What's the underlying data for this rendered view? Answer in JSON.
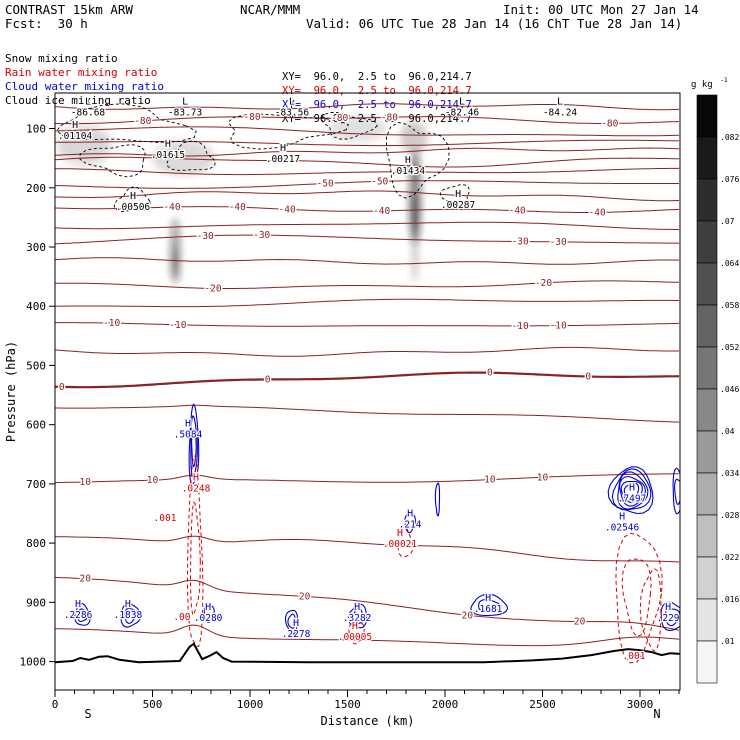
{
  "header": {
    "title": "CONTRAST 15km ARW",
    "center": "NCAR/MMM",
    "init": "Init: 00 UTC Mon 27 Jan 14",
    "fcst": "Fcst:  30 h",
    "valid": "Valid: 06 UTC Tue 28 Jan 14 (16 ChT Tue 28 Jan 14)"
  },
  "legend": [
    {
      "label": "Snow mixing ratio",
      "xy": "XY=  96.0,  2.5 to  96.0,214.7",
      "color": "#000000"
    },
    {
      "label": "Rain water mixing ratio",
      "xy": "XY=  96.0,  2.5 to  96.0,214.7",
      "color": "#d40000"
    },
    {
      "label": "Cloud water mixing ratio",
      "xy": "XY=  96.0,  2.5 to  96.0,214.7",
      "color": "#0000cc"
    },
    {
      "label": "Cloud ice mixing ratio",
      "xy": "XY=  96.0,  2.5 to  96.0,214.7",
      "color": "#000000"
    }
  ],
  "colors": {
    "temp": "#8b2222",
    "rain": "#d40000",
    "cloud": "#0000cc",
    "snow": "#000000"
  },
  "colorbar": {
    "unit": "g kg",
    "exp": "-1",
    "labels": [
      ".082",
      ".076",
      ".07",
      ".064",
      ".058",
      ".052",
      ".046",
      ".04",
      ".034",
      ".028",
      ".022",
      ".016",
      ".01"
    ]
  },
  "axes": {
    "y_label": "Pressure (hPa)",
    "y_ticks": [
      100,
      200,
      300,
      400,
      500,
      600,
      700,
      800,
      900,
      1000
    ],
    "x_label": "Distance (km)",
    "x_ticks": [
      0,
      500,
      1000,
      1500,
      2000,
      2500,
      3000
    ],
    "left_label": "S",
    "right_label": "N",
    "p_top": 40,
    "p_bottom": 1048,
    "km_max": 3205
  },
  "chart_data": {
    "type": "contour-cross-section",
    "description": "Vertical cross section: temperature contours (dark red, deg C), snow mixing ratio (black dashed), rain water mixing ratio (red dashed), cloud water mixing ratio (blue), cloud ice mixing ratio (gray shading, g/kg)",
    "temperature_contours": [
      {
        "v": -85,
        "p": 63
      },
      {
        "v": -80,
        "p": 85,
        "lab": [
          450,
          1010,
          1460,
          1715,
          2845
        ]
      },
      {
        "v": -75,
        "p": 106
      },
      {
        "v": -70,
        "p": 123
      },
      {
        "v": -65,
        "p": 140
      },
      {
        "v": -60,
        "p": 156
      },
      {
        "v": -55,
        "p": 173
      },
      {
        "v": -50,
        "p": 194,
        "lab": [
          1385,
          1665
        ]
      },
      {
        "v": -45,
        "p": 214
      },
      {
        "v": -40,
        "p": 236,
        "lab": [
          600,
          935,
          1190,
          1675,
          2370,
          2780
        ]
      },
      {
        "v": -35,
        "p": 263
      },
      {
        "v": -30,
        "p": 288,
        "lab": [
          770,
          1060,
          2385,
          2580
        ]
      },
      {
        "v": -25,
        "p": 324
      },
      {
        "v": -20,
        "p": 363,
        "lab": [
          810,
          2505
        ]
      },
      {
        "v": -15,
        "p": 396
      },
      {
        "v": -10,
        "p": 432,
        "lab": [
          290,
          630,
          2385,
          2580
        ]
      },
      {
        "v": -5,
        "p": 477
      },
      {
        "v": 0,
        "p": 528,
        "trend": -10,
        "thick": true,
        "lab": [
          35,
          1090,
          2230,
          2735
        ]
      },
      {
        "v": 5,
        "p": 570,
        "trend": 20
      },
      {
        "v": 10,
        "p": 700,
        "trend": -18,
        "lab": [
          155,
          500,
          2230,
          2500
        ]
      },
      {
        "v": 15,
        "p": 783,
        "trend": 45
      },
      {
        "v": 20,
        "p": 858,
        "trend": 90,
        "lab": [
          155,
          1280,
          2115,
          2690
        ]
      },
      {
        "v": 25,
        "p": 952,
        "trend": 20
      }
    ],
    "snow_regions": [
      {
        "km": 350,
        "hpa": 95,
        "rx": 320,
        "rp": 30
      },
      {
        "km": 1150,
        "hpa": 102,
        "rx": 300,
        "rp": 26
      },
      {
        "km": 320,
        "hpa": 152,
        "rx": 150,
        "rp": 26
      },
      {
        "km": 700,
        "hpa": 150,
        "rx": 120,
        "rp": 22
      },
      {
        "km": 1840,
        "hpa": 150,
        "rx": 140,
        "rp": 62
      },
      {
        "km": 2060,
        "hpa": 214,
        "rx": 75,
        "rp": 18
      },
      {
        "km": 400,
        "hpa": 222,
        "rx": 80,
        "rp": 20
      },
      {
        "km": 1500,
        "hpa": 95,
        "rx": 130,
        "rp": 20
      }
    ],
    "cloud_regions": [
      {
        "km": 140,
        "hpa": 922,
        "rx": 38,
        "rp": 18,
        "loops": 2
      },
      {
        "km": 385,
        "hpa": 922,
        "rx": 48,
        "rp": 20,
        "loops": 2
      },
      {
        "km": 790,
        "hpa": 918,
        "rx": 26,
        "rp": 14,
        "loops": 1
      },
      {
        "km": 1215,
        "hpa": 932,
        "rx": 30,
        "rp": 20,
        "loops": 2
      },
      {
        "km": 1555,
        "hpa": 924,
        "rx": 45,
        "rp": 20,
        "loops": 2
      },
      {
        "km": 2225,
        "hpa": 906,
        "rx": 95,
        "rp": 17,
        "loops": 2
      },
      {
        "km": 3165,
        "hpa": 924,
        "rx": 60,
        "rp": 24,
        "loops": 2
      },
      {
        "km": 1820,
        "hpa": 765,
        "rx": 26,
        "rp": 16,
        "loops": 1
      },
      {
        "km": 1962,
        "hpa": 725,
        "rx": 11,
        "rp": 26,
        "loops": 1
      },
      {
        "km": 2958,
        "hpa": 712,
        "rx": 108,
        "rp": 40,
        "loops": 6
      },
      {
        "km": 712,
        "hpa": 638,
        "rx": 24,
        "rp": 66,
        "loops": 3
      },
      {
        "km": 3195,
        "hpa": 712,
        "rx": 28,
        "rp": 36,
        "loops": 2
      }
    ],
    "rain_regions": [
      {
        "km": 718,
        "hpa": 830,
        "rx": 38,
        "rp": 158,
        "loops": 2
      },
      {
        "km": 2985,
        "hpa": 885,
        "rx": 120,
        "rp": 103,
        "loops": 2
      },
      {
        "km": 3060,
        "hpa": 912,
        "rx": 50,
        "rp": 70,
        "loops": 1
      },
      {
        "km": 1795,
        "hpa": 800,
        "rx": 38,
        "rp": 24,
        "loops": 1
      },
      {
        "km": 1545,
        "hpa": 950,
        "rx": 38,
        "rp": 18,
        "loops": 1
      }
    ],
    "ice_shading": [
      {
        "km": 1846,
        "hpa": 215,
        "rx": 30,
        "rp": 78,
        "op": 0.5
      },
      {
        "km": 1846,
        "hpa": 252,
        "rx": 19,
        "rp": 45,
        "op": 0.5
      },
      {
        "km": 1846,
        "hpa": 168,
        "rx": 14,
        "rp": 30,
        "op": 0.35
      },
      {
        "km": 1846,
        "hpa": 320,
        "rx": 12,
        "rp": 40,
        "op": 0.3
      },
      {
        "km": 617,
        "hpa": 306,
        "rx": 24,
        "rp": 55,
        "op": 0.45
      },
      {
        "km": 617,
        "hpa": 330,
        "rx": 15,
        "rp": 30,
        "op": 0.4
      },
      {
        "km": 150,
        "hpa": 128,
        "rx": 140,
        "rp": 34,
        "op": 0.18
      },
      {
        "km": 660,
        "hpa": 150,
        "rx": 160,
        "rp": 30,
        "op": 0.14
      },
      {
        "km": 1550,
        "hpa": 100,
        "rx": 150,
        "rp": 22,
        "op": 0.12
      },
      {
        "km": 1840,
        "hpa": 115,
        "rx": 70,
        "rp": 28,
        "op": 0.2
      }
    ],
    "terrain": [
      [
        0,
        1001
      ],
      [
        90,
        999
      ],
      [
        130,
        994
      ],
      [
        175,
        997
      ],
      [
        225,
        992
      ],
      [
        270,
        991
      ],
      [
        330,
        997
      ],
      [
        430,
        1001
      ],
      [
        640,
        999
      ],
      [
        690,
        975
      ],
      [
        712,
        970
      ],
      [
        728,
        980
      ],
      [
        755,
        996
      ],
      [
        795,
        990
      ],
      [
        828,
        984
      ],
      [
        862,
        994
      ],
      [
        905,
        1000
      ],
      [
        1300,
        1001
      ],
      [
        2200,
        1001
      ],
      [
        2450,
        998
      ],
      [
        2600,
        995
      ],
      [
        2750,
        989
      ],
      [
        2870,
        982
      ],
      [
        2940,
        979
      ],
      [
        3000,
        981
      ],
      [
        3060,
        984
      ],
      [
        3110,
        989
      ],
      [
        3155,
        986
      ],
      [
        3205,
        987
      ]
    ],
    "annotations": [
      {
        "sym": "L",
        "val": "-86.68",
        "km": 169,
        "hpa": 59,
        "c": "black"
      },
      {
        "sym": "L",
        "val": "-83.73",
        "km": 667,
        "hpa": 59,
        "c": "black"
      },
      {
        "sym": "L",
        "val": "-83.56",
        "km": 1215,
        "hpa": 59,
        "c": "black"
      },
      {
        "sym": "L",
        "val": "-82.46",
        "km": 2087,
        "hpa": 59,
        "c": "black"
      },
      {
        "sym": "L",
        "val": "-84.24",
        "km": 2590,
        "hpa": 59,
        "c": "black"
      },
      {
        "sym": "H",
        "val": ".01104",
        "km": 103,
        "hpa": 99,
        "c": "black"
      },
      {
        "sym": "H",
        "val": ".01615",
        "km": 579,
        "hpa": 131,
        "c": "black"
      },
      {
        "sym": "H",
        "val": ".00217",
        "km": 1169,
        "hpa": 138,
        "c": "black"
      },
      {
        "sym": "H",
        "val": ".01434",
        "km": 1810,
        "hpa": 158,
        "c": "black"
      },
      {
        "sym": "H",
        "val": ".00287",
        "km": 2067,
        "hpa": 216,
        "c": "black"
      },
      {
        "sym": "H",
        "val": ".00506",
        "km": 400,
        "hpa": 219,
        "c": "black"
      },
      {
        "sym": "H",
        "val": ".2286",
        "km": 118,
        "hpa": 908,
        "c": "blue"
      },
      {
        "sym": "H",
        "val": ".1838",
        "km": 374,
        "hpa": 908,
        "c": "blue"
      },
      {
        "sym": "H",
        "val": ".0280",
        "km": 785,
        "hpa": 913,
        "c": "blue"
      },
      {
        "sym": "H",
        "val": ".2278",
        "km": 1236,
        "hpa": 940,
        "c": "blue"
      },
      {
        "sym": "H",
        "val": ".3282",
        "km": 1549,
        "hpa": 913,
        "c": "blue"
      },
      {
        "sym": "H",
        "val": ".1681",
        "km": 2221,
        "hpa": 898,
        "c": "blue"
      },
      {
        "sym": "H",
        "val": ".229",
        "km": 3144,
        "hpa": 913,
        "c": "blue"
      },
      {
        "sym": "H",
        "val": ".214",
        "km": 1821,
        "hpa": 755,
        "c": "blue"
      },
      {
        "sym": "H",
        "val": ".7497",
        "km": 2959,
        "hpa": 711,
        "c": "blue"
      },
      {
        "sym": "H",
        "val": ".5084",
        "km": 682,
        "hpa": 603,
        "c": "blue"
      },
      {
        "sym": "H",
        "val": ".02546",
        "km": 2908,
        "hpa": 760,
        "c": "blue"
      },
      {
        "sym": "H",
        "val": ".0248",
        "km": 723,
        "hpa": 694,
        "c": "red"
      },
      {
        "sym": "",
        "val": ".001",
        "km": 564,
        "hpa": 763,
        "c": "red"
      },
      {
        "sym": "",
        "val": ".00",
        "km": 651,
        "hpa": 930,
        "c": "red"
      },
      {
        "sym": "H",
        "val": ".00021",
        "km": 1769,
        "hpa": 788,
        "c": "red"
      },
      {
        "sym": "H",
        "val": ".00005",
        "km": 1538,
        "hpa": 945,
        "c": "red"
      },
      {
        "sym": "",
        "val": ".001",
        "km": 2969,
        "hpa": 996,
        "c": "red"
      }
    ]
  }
}
